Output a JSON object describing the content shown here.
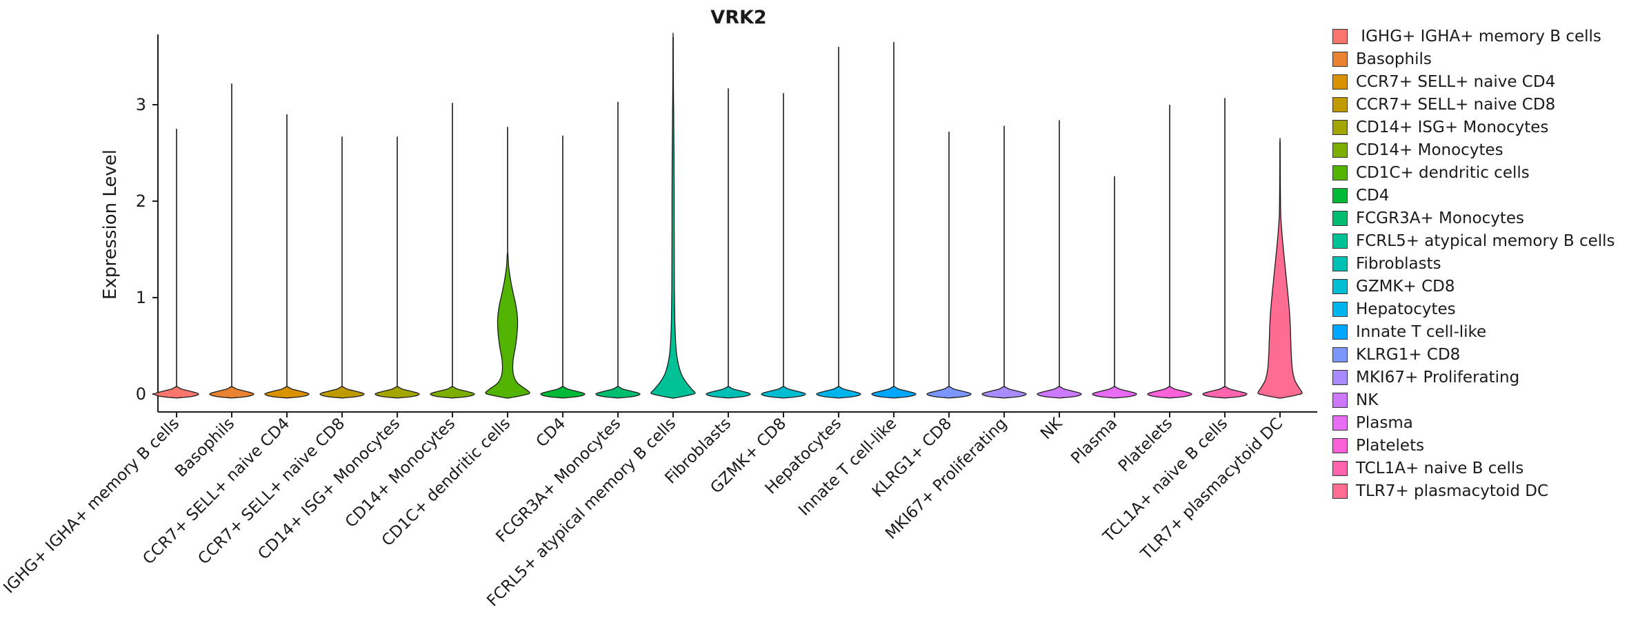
{
  "chart_data": {
    "type": "violin",
    "title": "VRK2",
    "ylabel": "Expression Level",
    "xlabel": "",
    "yticks": [
      0,
      1,
      2,
      3
    ],
    "ylim": [
      -0.19,
      3.85
    ],
    "grid": false,
    "legend_position": "right",
    "axis_color": "#1a1a1a",
    "violin_outline_color": "#1a1a1a",
    "default_body": [
      [
        -0.04,
        0.02
      ],
      [
        -0.025,
        0.28
      ],
      [
        0,
        0.4
      ],
      [
        0.025,
        0.28
      ],
      [
        0.05,
        0.1
      ],
      [
        0.075,
        0.015
      ]
    ],
    "cells": [
      {
        "name": "IGHG+ IGHA+ memory B cells",
        "legend_label": " IGHG+ IGHA+ memory B cells",
        "color": "#F8766D",
        "max": 2.75,
        "body": null
      },
      {
        "name": "Basophils",
        "color": "#EA8331",
        "max": 3.22,
        "body": null
      },
      {
        "name": "CCR7+ SELL+ naive CD4",
        "color": "#D89200",
        "max": 2.9,
        "body": null
      },
      {
        "name": "CCR7+ SELL+ naive CD8",
        "color": "#C09B00",
        "max": 2.67,
        "body": null
      },
      {
        "name": "CD14+ ISG+ Monocytes",
        "color": "#A3A500",
        "max": 2.67,
        "body": null
      },
      {
        "name": "CD14+ Monocytes",
        "color": "#7CAE00",
        "max": 3.02,
        "body": null
      },
      {
        "name": "CD1C+ dendritic cells",
        "color": "#52B400",
        "max": 2.77,
        "body": [
          [
            -0.04,
            0.03
          ],
          [
            -0.01,
            0.3
          ],
          [
            0.01,
            0.4
          ],
          [
            0.05,
            0.33
          ],
          [
            0.12,
            0.17
          ],
          [
            0.22,
            0.1
          ],
          [
            0.35,
            0.1
          ],
          [
            0.5,
            0.145
          ],
          [
            0.65,
            0.175
          ],
          [
            0.78,
            0.18
          ],
          [
            0.92,
            0.15
          ],
          [
            1.05,
            0.1
          ],
          [
            1.18,
            0.055
          ],
          [
            1.32,
            0.02
          ],
          [
            1.45,
            0.006
          ]
        ]
      },
      {
        "name": "CD4",
        "color": "#00BB38",
        "max": 2.68,
        "body": null
      },
      {
        "name": "FCGR3A+ Monocytes",
        "color": "#00BE6F",
        "max": 3.03,
        "body": null
      },
      {
        "name": "FCRL5+ atypical memory B cells",
        "color": "#00C096",
        "max": 3.7,
        "body": [
          [
            -0.04,
            0.03
          ],
          [
            -0.01,
            0.3
          ],
          [
            0.01,
            0.4
          ],
          [
            0.05,
            0.34
          ],
          [
            0.12,
            0.24
          ],
          [
            0.2,
            0.155
          ],
          [
            0.3,
            0.1
          ],
          [
            0.42,
            0.062
          ],
          [
            0.58,
            0.042
          ],
          [
            0.8,
            0.03
          ],
          [
            1.1,
            0.024
          ],
          [
            1.5,
            0.021
          ],
          [
            1.95,
            0.02
          ],
          [
            2.4,
            0.018
          ],
          [
            2.75,
            0.013
          ],
          [
            3.05,
            0.008
          ],
          [
            3.35,
            0.004
          ],
          [
            3.7,
            0.0015
          ]
        ]
      },
      {
        "name": "Fibroblasts",
        "color": "#00C0B6",
        "max": 3.17,
        "body": null
      },
      {
        "name": "GZMK+ CD8",
        "color": "#00BDD2",
        "max": 3.12,
        "body": null
      },
      {
        "name": "Hepatocytes",
        "color": "#00B5EC",
        "max": 3.6,
        "body": null
      },
      {
        "name": "Innate T cell-like",
        "color": "#00A7FF",
        "max": 3.65,
        "body": null
      },
      {
        "name": "KLRG1+ CD8",
        "color": "#7C96FF",
        "max": 2.72,
        "body": null
      },
      {
        "name": "MKI67+ Proliferating",
        "color": "#A88BFF",
        "max": 2.78,
        "body": null
      },
      {
        "name": "NK",
        "color": "#CC79FF",
        "max": 2.84,
        "body": null
      },
      {
        "name": "Plasma",
        "color": "#E86BF3",
        "max": 2.26,
        "body": null
      },
      {
        "name": "Platelets",
        "color": "#FB61D9",
        "max": 3.0,
        "body": null
      },
      {
        "name": "TCL1A+ naive B cells",
        "color": "#FF65AE",
        "max": 3.07,
        "body": null
      },
      {
        "name": "TLR7+ plasmacytoid DC",
        "color": "#FF6C92",
        "max": 2.62,
        "body": [
          [
            -0.04,
            0.03
          ],
          [
            -0.01,
            0.3
          ],
          [
            0.01,
            0.4
          ],
          [
            0.06,
            0.35
          ],
          [
            0.14,
            0.27
          ],
          [
            0.25,
            0.225
          ],
          [
            0.4,
            0.205
          ],
          [
            0.55,
            0.195
          ],
          [
            0.72,
            0.185
          ],
          [
            0.9,
            0.165
          ],
          [
            1.08,
            0.135
          ],
          [
            1.25,
            0.105
          ],
          [
            1.42,
            0.075
          ],
          [
            1.58,
            0.048
          ],
          [
            1.72,
            0.028
          ],
          [
            1.85,
            0.014
          ],
          [
            2.05,
            0.007
          ],
          [
            2.35,
            0.004
          ],
          [
            2.62,
            0.0015
          ]
        ]
      }
    ]
  }
}
